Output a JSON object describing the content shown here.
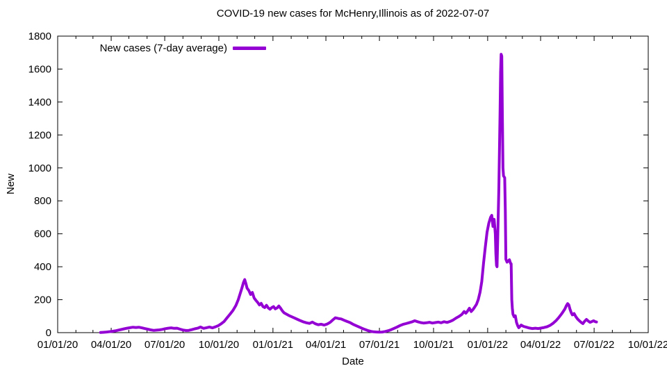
{
  "chart_data": {
    "type": "line",
    "title": "COVID-19 new cases for McHenry,Illinois as of 2022-07-07",
    "xlabel": "Date",
    "ylabel": "New",
    "legend_position": "top-left-inside",
    "background_color": "#ffffff",
    "axis_color": "#000000",
    "grid": false,
    "ylim": [
      0,
      1800
    ],
    "xlim": [
      "2020-01-01",
      "2022-10-01"
    ],
    "y_ticks": [
      0,
      200,
      400,
      600,
      800,
      1000,
      1200,
      1400,
      1600,
      1800
    ],
    "x_ticks": [
      {
        "label": "01/01/20",
        "date": "2020-01-01"
      },
      {
        "label": "04/01/20",
        "date": "2020-04-01"
      },
      {
        "label": "07/01/20",
        "date": "2020-07-01"
      },
      {
        "label": "10/01/20",
        "date": "2020-10-01"
      },
      {
        "label": "01/01/21",
        "date": "2021-01-01"
      },
      {
        "label": "04/01/21",
        "date": "2021-04-01"
      },
      {
        "label": "07/01/21",
        "date": "2021-07-01"
      },
      {
        "label": "10/01/21",
        "date": "2021-10-01"
      },
      {
        "label": "01/01/22",
        "date": "2022-01-01"
      },
      {
        "label": "04/01/22",
        "date": "2022-04-01"
      },
      {
        "label": "07/01/22",
        "date": "2022-07-01"
      },
      {
        "label": "10/01/22",
        "date": "2022-10-01"
      }
    ],
    "minor_x_tick_interval": "monthly",
    "series": [
      {
        "name": "New cases (7-day average)",
        "color": "#9400d3",
        "line_width": 4,
        "points": [
          [
            "2020-03-14",
            1
          ],
          [
            "2020-03-19",
            2
          ],
          [
            "2020-03-24",
            4
          ],
          [
            "2020-03-29",
            6
          ],
          [
            "2020-04-03",
            8
          ],
          [
            "2020-04-08",
            11
          ],
          [
            "2020-04-13",
            15
          ],
          [
            "2020-04-18",
            19
          ],
          [
            "2020-04-23",
            23
          ],
          [
            "2020-04-28",
            27
          ],
          [
            "2020-05-03",
            30
          ],
          [
            "2020-05-08",
            33
          ],
          [
            "2020-05-13",
            31
          ],
          [
            "2020-05-18",
            33
          ],
          [
            "2020-05-23",
            29
          ],
          [
            "2020-05-28",
            25
          ],
          [
            "2020-06-02",
            21
          ],
          [
            "2020-06-07",
            17
          ],
          [
            "2020-06-12",
            14
          ],
          [
            "2020-06-17",
            15
          ],
          [
            "2020-06-22",
            17
          ],
          [
            "2020-06-27",
            20
          ],
          [
            "2020-07-02",
            24
          ],
          [
            "2020-07-07",
            27
          ],
          [
            "2020-07-12",
            29
          ],
          [
            "2020-07-17",
            26
          ],
          [
            "2020-07-22",
            27
          ],
          [
            "2020-07-27",
            21
          ],
          [
            "2020-08-01",
            16
          ],
          [
            "2020-08-06",
            13
          ],
          [
            "2020-08-11",
            14
          ],
          [
            "2020-08-16",
            18
          ],
          [
            "2020-08-21",
            23
          ],
          [
            "2020-08-26",
            27
          ],
          [
            "2020-08-31",
            34
          ],
          [
            "2020-09-05",
            26
          ],
          [
            "2020-09-10",
            30
          ],
          [
            "2020-09-15",
            34
          ],
          [
            "2020-09-20",
            29
          ],
          [
            "2020-09-25",
            35
          ],
          [
            "2020-09-30",
            42
          ],
          [
            "2020-10-05",
            54
          ],
          [
            "2020-10-10",
            68
          ],
          [
            "2020-10-15",
            90
          ],
          [
            "2020-10-20",
            112
          ],
          [
            "2020-10-25",
            135
          ],
          [
            "2020-10-30",
            165
          ],
          [
            "2020-11-03",
            200
          ],
          [
            "2020-11-06",
            235
          ],
          [
            "2020-11-09",
            268
          ],
          [
            "2020-11-12",
            305
          ],
          [
            "2020-11-14",
            322
          ],
          [
            "2020-11-16",
            298
          ],
          [
            "2020-11-18",
            270
          ],
          [
            "2020-11-21",
            256
          ],
          [
            "2020-11-24",
            232
          ],
          [
            "2020-11-27",
            244
          ],
          [
            "2020-11-30",
            210
          ],
          [
            "2020-12-03",
            196
          ],
          [
            "2020-12-06",
            184
          ],
          [
            "2020-12-09",
            168
          ],
          [
            "2020-12-12",
            178
          ],
          [
            "2020-12-15",
            158
          ],
          [
            "2020-12-18",
            152
          ],
          [
            "2020-12-21",
            166
          ],
          [
            "2020-12-24",
            150
          ],
          [
            "2020-12-27",
            142
          ],
          [
            "2020-12-30",
            152
          ],
          [
            "2021-01-02",
            158
          ],
          [
            "2021-01-05",
            144
          ],
          [
            "2021-01-08",
            150
          ],
          [
            "2021-01-11",
            162
          ],
          [
            "2021-01-14",
            148
          ],
          [
            "2021-01-17",
            132
          ],
          [
            "2021-01-20",
            120
          ],
          [
            "2021-01-24",
            112
          ],
          [
            "2021-01-28",
            104
          ],
          [
            "2021-02-02",
            96
          ],
          [
            "2021-02-07",
            88
          ],
          [
            "2021-02-12",
            80
          ],
          [
            "2021-02-17",
            72
          ],
          [
            "2021-02-22",
            65
          ],
          [
            "2021-02-27",
            60
          ],
          [
            "2021-03-04",
            56
          ],
          [
            "2021-03-09",
            64
          ],
          [
            "2021-03-14",
            54
          ],
          [
            "2021-03-19",
            48
          ],
          [
            "2021-03-24",
            51
          ],
          [
            "2021-03-29",
            46
          ],
          [
            "2021-04-03",
            52
          ],
          [
            "2021-04-08",
            62
          ],
          [
            "2021-04-13",
            78
          ],
          [
            "2021-04-17",
            90
          ],
          [
            "2021-04-22",
            86
          ],
          [
            "2021-04-27",
            83
          ],
          [
            "2021-05-02",
            75
          ],
          [
            "2021-05-07",
            68
          ],
          [
            "2021-05-12",
            61
          ],
          [
            "2021-05-17",
            51
          ],
          [
            "2021-05-22",
            43
          ],
          [
            "2021-05-27",
            35
          ],
          [
            "2021-06-01",
            27
          ],
          [
            "2021-06-06",
            20
          ],
          [
            "2021-06-11",
            13
          ],
          [
            "2021-06-16",
            8
          ],
          [
            "2021-06-21",
            5
          ],
          [
            "2021-06-26",
            4
          ],
          [
            "2021-07-01",
            3
          ],
          [
            "2021-07-06",
            4
          ],
          [
            "2021-07-11",
            7
          ],
          [
            "2021-07-16",
            12
          ],
          [
            "2021-07-21",
            18
          ],
          [
            "2021-07-26",
            26
          ],
          [
            "2021-07-31",
            34
          ],
          [
            "2021-08-05",
            43
          ],
          [
            "2021-08-10",
            50
          ],
          [
            "2021-08-15",
            55
          ],
          [
            "2021-08-20",
            60
          ],
          [
            "2021-08-25",
            65
          ],
          [
            "2021-08-30",
            72
          ],
          [
            "2021-09-04",
            66
          ],
          [
            "2021-09-09",
            61
          ],
          [
            "2021-09-14",
            58
          ],
          [
            "2021-09-19",
            60
          ],
          [
            "2021-09-24",
            63
          ],
          [
            "2021-09-29",
            58
          ],
          [
            "2021-10-04",
            61
          ],
          [
            "2021-10-09",
            64
          ],
          [
            "2021-10-14",
            60
          ],
          [
            "2021-10-19",
            66
          ],
          [
            "2021-10-24",
            62
          ],
          [
            "2021-10-29",
            68
          ],
          [
            "2021-11-03",
            76
          ],
          [
            "2021-11-08",
            88
          ],
          [
            "2021-11-13",
            98
          ],
          [
            "2021-11-18",
            110
          ],
          [
            "2021-11-22",
            128
          ],
          [
            "2021-11-25",
            118
          ],
          [
            "2021-11-28",
            132
          ],
          [
            "2021-12-01",
            148
          ],
          [
            "2021-12-04",
            128
          ],
          [
            "2021-12-07",
            140
          ],
          [
            "2021-12-10",
            155
          ],
          [
            "2021-12-13",
            172
          ],
          [
            "2021-12-16",
            200
          ],
          [
            "2021-12-19",
            245
          ],
          [
            "2021-12-22",
            310
          ],
          [
            "2021-12-25",
            420
          ],
          [
            "2021-12-28",
            520
          ],
          [
            "2021-12-31",
            610
          ],
          [
            "2022-01-03",
            665
          ],
          [
            "2022-01-06",
            700
          ],
          [
            "2022-01-08",
            712
          ],
          [
            "2022-01-10",
            645
          ],
          [
            "2022-01-12",
            688
          ],
          [
            "2022-01-14",
            600
          ],
          [
            "2022-01-15",
            480
          ],
          [
            "2022-01-16",
            408
          ],
          [
            "2022-01-17",
            400
          ],
          [
            "2022-01-18",
            560
          ],
          [
            "2022-01-20",
            880
          ],
          [
            "2022-01-22",
            1330
          ],
          [
            "2022-01-23",
            1580
          ],
          [
            "2022-01-24",
            1690
          ],
          [
            "2022-01-25",
            1678
          ],
          [
            "2022-01-26",
            1340
          ],
          [
            "2022-01-27",
            1000
          ],
          [
            "2022-01-28",
            952
          ],
          [
            "2022-01-30",
            940
          ],
          [
            "2022-01-31",
            740
          ],
          [
            "2022-02-01",
            445
          ],
          [
            "2022-02-03",
            428
          ],
          [
            "2022-02-05",
            435
          ],
          [
            "2022-02-07",
            442
          ],
          [
            "2022-02-09",
            420
          ],
          [
            "2022-02-10",
            418
          ],
          [
            "2022-02-11",
            200
          ],
          [
            "2022-02-12",
            148
          ],
          [
            "2022-02-13",
            112
          ],
          [
            "2022-02-15",
            96
          ],
          [
            "2022-02-17",
            102
          ],
          [
            "2022-02-19",
            62
          ],
          [
            "2022-02-21",
            42
          ],
          [
            "2022-02-23",
            30
          ],
          [
            "2022-02-25",
            38
          ],
          [
            "2022-02-27",
            46
          ],
          [
            "2022-03-03",
            38
          ],
          [
            "2022-03-08",
            33
          ],
          [
            "2022-03-13",
            28
          ],
          [
            "2022-03-18",
            25
          ],
          [
            "2022-03-23",
            27
          ],
          [
            "2022-03-28",
            25
          ],
          [
            "2022-04-02",
            28
          ],
          [
            "2022-04-07",
            31
          ],
          [
            "2022-04-12",
            36
          ],
          [
            "2022-04-17",
            44
          ],
          [
            "2022-04-22",
            56
          ],
          [
            "2022-04-27",
            72
          ],
          [
            "2022-05-02",
            92
          ],
          [
            "2022-05-07",
            115
          ],
          [
            "2022-05-12",
            142
          ],
          [
            "2022-05-15",
            165
          ],
          [
            "2022-05-17",
            176
          ],
          [
            "2022-05-19",
            168
          ],
          [
            "2022-05-21",
            142
          ],
          [
            "2022-05-23",
            122
          ],
          [
            "2022-05-25",
            108
          ],
          [
            "2022-05-28",
            116
          ],
          [
            "2022-05-31",
            96
          ],
          [
            "2022-06-03",
            82
          ],
          [
            "2022-06-06",
            72
          ],
          [
            "2022-06-09",
            62
          ],
          [
            "2022-06-12",
            55
          ],
          [
            "2022-06-15",
            70
          ],
          [
            "2022-06-18",
            80
          ],
          [
            "2022-06-21",
            71
          ],
          [
            "2022-06-24",
            63
          ],
          [
            "2022-06-27",
            67
          ],
          [
            "2022-06-30",
            72
          ],
          [
            "2022-07-03",
            66
          ],
          [
            "2022-07-05",
            65
          ]
        ]
      }
    ]
  }
}
